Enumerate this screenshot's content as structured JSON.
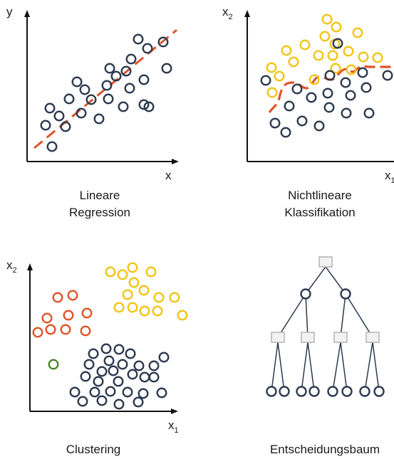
{
  "colors": {
    "dark": "#2d3a4f",
    "orange": "#e0532a",
    "yellow": "#f2c416",
    "green": "#4a8a2a",
    "node_fill": "#f2f2f2",
    "node_stroke": "#b8b8b8",
    "axis": "#111111"
  },
  "panels": {
    "regression": {
      "caption_line1": "Lineare",
      "caption_line2": "Regression",
      "x_label": "x",
      "y_label": "y"
    },
    "classification": {
      "caption_line1": "Nichtlineare",
      "caption_line2": "Klassifikation",
      "x_label": "x",
      "x_sub": "1",
      "y_label": "x",
      "y_sub": "2"
    },
    "clustering": {
      "caption": "Clustering",
      "x_label": "x",
      "x_sub": "1",
      "y_label": "x",
      "y_sub": "2"
    },
    "tree": {
      "caption": "Entscheidungsbaum"
    }
  }
}
